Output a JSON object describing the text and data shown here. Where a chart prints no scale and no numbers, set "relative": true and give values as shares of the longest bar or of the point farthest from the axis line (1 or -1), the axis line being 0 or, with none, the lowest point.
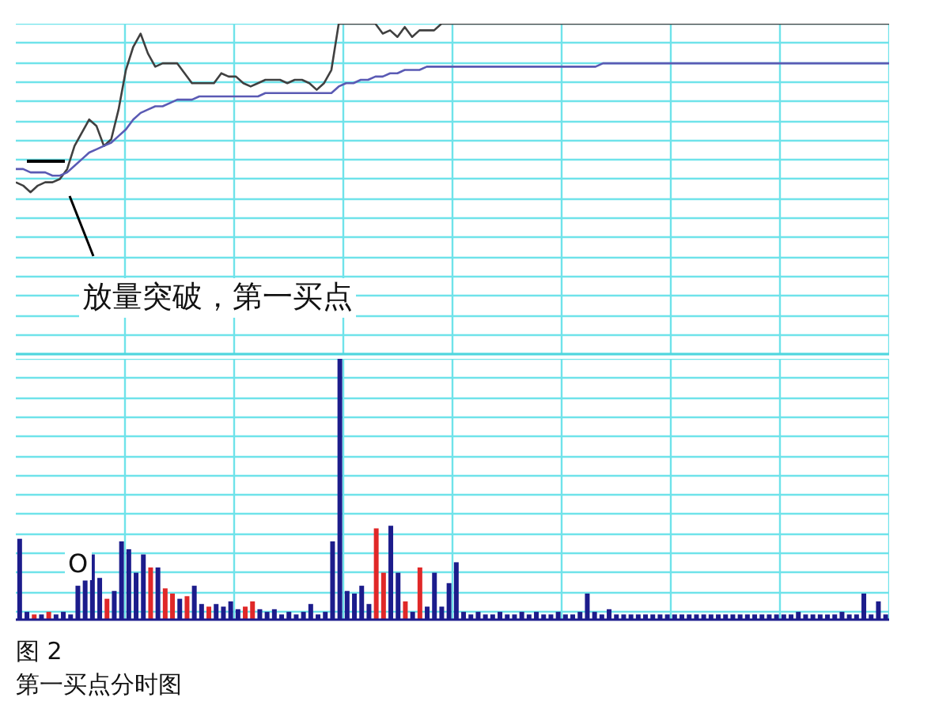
{
  "chart_data": [
    {
      "type": "line",
      "relative": true,
      "grid": true,
      "categories": [
        null,
        null,
        null,
        null,
        null,
        null,
        null,
        null,
        null,
        null,
        null,
        null,
        null,
        null,
        null,
        null,
        null,
        null,
        null,
        null,
        null,
        null,
        null,
        null,
        null,
        null,
        null,
        null,
        null,
        null,
        null,
        null,
        null,
        null,
        null,
        null,
        null,
        null,
        null,
        null,
        null,
        null,
        null,
        null,
        null,
        null,
        null,
        null,
        null,
        null,
        null,
        null,
        null,
        null,
        null,
        null,
        null,
        null,
        null,
        null,
        null,
        null,
        null,
        null,
        null,
        null,
        null,
        null,
        null,
        null,
        null,
        null,
        null,
        null,
        null,
        null,
        null,
        null,
        null,
        null,
        null,
        null,
        null,
        null,
        null,
        null,
        null,
        null,
        null,
        null,
        null,
        null,
        null,
        null,
        null,
        null,
        null,
        null,
        null,
        null,
        null,
        null,
        null,
        null,
        null,
        null,
        null,
        null,
        null,
        null,
        null,
        null,
        null,
        null,
        null,
        null,
        null,
        null,
        null,
        null
      ],
      "series": [
        {
          "color": "#404040",
          "values": [
            0.52,
            0.51,
            0.49,
            0.51,
            0.52,
            0.52,
            0.53,
            0.56,
            0.63,
            0.67,
            0.71,
            0.69,
            0.63,
            0.65,
            0.74,
            0.86,
            0.93,
            0.97,
            0.91,
            0.87,
            0.88,
            0.88,
            0.88,
            0.85,
            0.82,
            0.82,
            0.82,
            0.82,
            0.85,
            0.84,
            0.84,
            0.82,
            0.81,
            0.82,
            0.83,
            0.83,
            0.83,
            0.82,
            0.83,
            0.83,
            0.82,
            0.8,
            0.82,
            0.86,
            1,
            1,
            1,
            1,
            1,
            1,
            0.97,
            0.98,
            0.96,
            0.99,
            0.96,
            0.98,
            0.98,
            0.98,
            1,
            1,
            1,
            1,
            1,
            1,
            1,
            1,
            1,
            1,
            1,
            1,
            1,
            1,
            1,
            1,
            1,
            1,
            1,
            1,
            1,
            1,
            1,
            1,
            1,
            1,
            1,
            1,
            1,
            1,
            1,
            1,
            1,
            1,
            1,
            1,
            1,
            1,
            1,
            1,
            1,
            1,
            1,
            1,
            1,
            1,
            1,
            1,
            1,
            1,
            1,
            1,
            1,
            1,
            1,
            1,
            1,
            1,
            1,
            1,
            1,
            1
          ]
        },
        {
          "color": "#5a5ab4",
          "values": [
            0.56,
            0.56,
            0.55,
            0.55,
            0.55,
            0.54,
            0.54,
            0.55,
            0.57,
            0.59,
            0.61,
            0.62,
            0.63,
            0.64,
            0.66,
            0.68,
            0.71,
            0.73,
            0.74,
            0.75,
            0.75,
            0.76,
            0.77,
            0.77,
            0.77,
            0.78,
            0.78,
            0.78,
            0.78,
            0.78,
            0.78,
            0.78,
            0.78,
            0.78,
            0.79,
            0.79,
            0.79,
            0.79,
            0.79,
            0.79,
            0.79,
            0.79,
            0.79,
            0.79,
            0.81,
            0.82,
            0.82,
            0.83,
            0.83,
            0.84,
            0.84,
            0.85,
            0.85,
            0.86,
            0.86,
            0.86,
            0.87,
            0.87,
            0.87,
            0.87,
            0.87,
            0.87,
            0.87,
            0.87,
            0.87,
            0.87,
            0.87,
            0.87,
            0.87,
            0.87,
            0.87,
            0.87,
            0.87,
            0.87,
            0.87,
            0.87,
            0.87,
            0.87,
            0.87,
            0.87,
            0.88,
            0.88,
            0.88,
            0.88,
            0.88,
            0.88,
            0.88,
            0.88,
            0.88,
            0.88,
            0.88,
            0.88,
            0.88,
            0.88,
            0.88,
            0.88,
            0.88,
            0.88,
            0.88,
            0.88,
            0.88,
            0.88,
            0.88,
            0.88,
            0.88,
            0.88,
            0.88,
            0.88,
            0.88,
            0.88,
            0.88,
            0.88,
            0.88,
            0.88,
            0.88,
            0.88,
            0.88,
            0.88,
            0.88,
            0.88
          ]
        }
      ],
      "annotations": [
        "放量突破，第一买点"
      ]
    },
    {
      "type": "bar",
      "relative": true,
      "grid": true,
      "categories": [
        null,
        null,
        null,
        null,
        null,
        null,
        null,
        null,
        null,
        null,
        null,
        null,
        null,
        null,
        null,
        null,
        null,
        null,
        null,
        null,
        null,
        null,
        null,
        null,
        null,
        null,
        null,
        null,
        null,
        null,
        null,
        null,
        null,
        null,
        null,
        null,
        null,
        null,
        null,
        null,
        null,
        null,
        null,
        null,
        null,
        null,
        null,
        null,
        null,
        null,
        null,
        null,
        null,
        null,
        null,
        null,
        null,
        null,
        null,
        null,
        null,
        null,
        null,
        null,
        null,
        null,
        null,
        null,
        null,
        null,
        null,
        null,
        null,
        null,
        null,
        null,
        null,
        null,
        null,
        null,
        null,
        null,
        null,
        null,
        null,
        null,
        null,
        null,
        null,
        null,
        null,
        null,
        null,
        null,
        null,
        null,
        null,
        null,
        null,
        null,
        null,
        null,
        null,
        null,
        null,
        null,
        null,
        null,
        null,
        null,
        null,
        null,
        null,
        null,
        null,
        null,
        null,
        null,
        null,
        null
      ],
      "values": [
        0.31,
        0.03,
        0.02,
        0.02,
        0.03,
        0.02,
        0.03,
        0.02,
        0.13,
        0.15,
        0.25,
        0.16,
        0.08,
        0.11,
        0.3,
        0.27,
        0.18,
        0.25,
        0.2,
        0.2,
        0.12,
        0.1,
        0.08,
        0.09,
        0.13,
        0.06,
        0.05,
        0.06,
        0.05,
        0.07,
        0.04,
        0.05,
        0.07,
        0.04,
        0.03,
        0.04,
        0.02,
        0.03,
        0.02,
        0.03,
        0.06,
        0.02,
        0.03,
        0.3,
        1,
        0.11,
        0.1,
        0.13,
        0.06,
        0.35,
        0.18,
        0.36,
        0.18,
        0.07,
        0.03,
        0.2,
        0.05,
        0.18,
        0.05,
        0.14,
        0.22,
        0.03,
        0.02,
        0.03,
        0.02,
        0.02,
        0.03,
        0.02,
        0.02,
        0.03,
        0.02,
        0.03,
        0.02,
        0.02,
        0.03,
        0.02,
        0.02,
        0.03,
        0.1,
        0.03,
        0.02,
        0.04,
        0.02,
        0.02,
        0.02,
        0.02,
        0.02,
        0.02,
        0.02,
        0.02,
        0.02,
        0.02,
        0.02,
        0.02,
        0.02,
        0.02,
        0.02,
        0.02,
        0.02,
        0.02,
        0.02,
        0.02,
        0.02,
        0.02,
        0.02,
        0.02,
        0.02,
        0.03,
        0.02,
        0.02,
        0.02,
        0.02,
        0.02,
        0.03,
        0.02,
        0.02,
        0.1,
        0.02,
        0.07,
        0.02
      ],
      "colors": [
        "#1c1c8c",
        "#1c1c8c",
        "#e02828",
        "#1c1c8c",
        "#e02828",
        "#1c1c8c",
        "#1c1c8c",
        "#1c1c8c",
        "#1c1c8c",
        "#1c1c8c",
        "#1c1c8c",
        "#1c1c8c",
        "#e02828",
        "#1c1c8c",
        "#1c1c8c",
        "#1c1c8c",
        "#1c1c8c",
        "#1c1c8c",
        "#e02828",
        "#1c1c8c",
        "#e02828",
        "#e02828",
        "#1c1c8c",
        "#e02828",
        "#1c1c8c",
        "#1c1c8c",
        "#e02828",
        "#1c1c8c",
        "#1c1c8c",
        "#1c1c8c",
        "#1c1c8c",
        "#e02828",
        "#e02828",
        "#1c1c8c",
        "#1c1c8c",
        "#1c1c8c",
        "#1c1c8c",
        "#1c1c8c",
        "#1c1c8c",
        "#1c1c8c",
        "#1c1c8c",
        "#1c1c8c",
        "#1c1c8c",
        "#1c1c8c",
        "#1c1c8c",
        "#1c1c8c",
        "#1c1c8c",
        "#1c1c8c",
        "#1c1c8c",
        "#e02828",
        "#e02828",
        "#1c1c8c",
        "#1c1c8c",
        "#e02828",
        "#1c1c8c",
        "#e02828",
        "#1c1c8c",
        "#1c1c8c",
        "#1c1c8c",
        "#1c1c8c",
        "#1c1c8c",
        "#1c1c8c",
        "#1c1c8c",
        "#1c1c8c",
        "#1c1c8c",
        "#1c1c8c",
        "#1c1c8c",
        "#1c1c8c",
        "#1c1c8c",
        "#1c1c8c",
        "#1c1c8c",
        "#1c1c8c",
        "#1c1c8c",
        "#1c1c8c",
        "#1c1c8c",
        "#1c1c8c",
        "#1c1c8c",
        "#1c1c8c",
        "#1c1c8c",
        "#1c1c8c",
        "#1c1c8c",
        "#1c1c8c",
        "#1c1c8c",
        "#1c1c8c",
        "#1c1c8c",
        "#1c1c8c",
        "#1c1c8c",
        "#1c1c8c",
        "#1c1c8c",
        "#1c1c8c",
        "#1c1c8c",
        "#1c1c8c",
        "#1c1c8c",
        "#1c1c8c",
        "#1c1c8c",
        "#1c1c8c",
        "#1c1c8c",
        "#1c1c8c",
        "#1c1c8c",
        "#1c1c8c",
        "#1c1c8c",
        "#1c1c8c",
        "#1c1c8c",
        "#1c1c8c",
        "#1c1c8c",
        "#1c1c8c",
        "#1c1c8c",
        "#1c1c8c",
        "#1c1c8c",
        "#1c1c8c",
        "#1c1c8c",
        "#1c1c8c",
        "#1c1c8c",
        "#1c1c8c",
        "#1c1c8c",
        "#1c1c8c",
        "#1c1c8c",
        "#1c1c8c",
        "#1c1c8c",
        "#1c1c8c"
      ],
      "annotations": [
        "O",
        "图 2",
        "第一买点分时图"
      ]
    }
  ]
}
